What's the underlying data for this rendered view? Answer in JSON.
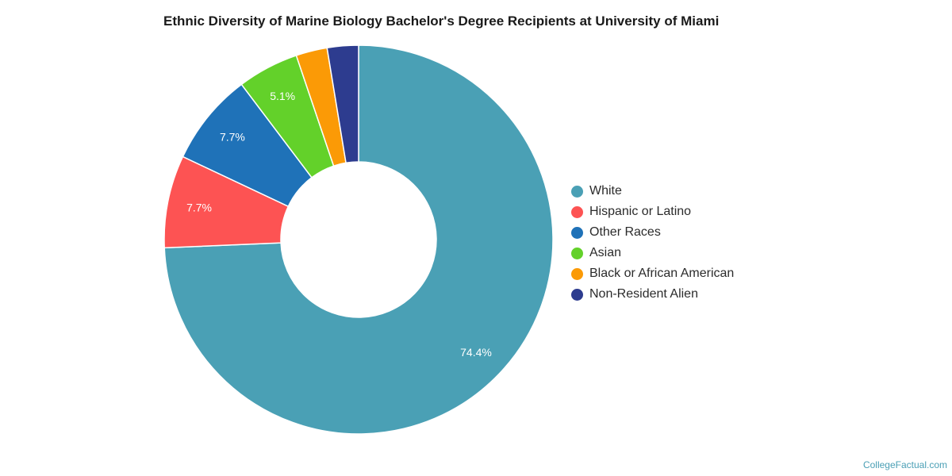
{
  "chart_data": {
    "type": "pie",
    "title": "Ethnic Diversity of Marine Biology Bachelor's Degree Recipients at University of Miami",
    "donut": true,
    "legend_position": "right",
    "slices": [
      {
        "label": "White",
        "value": 74.4,
        "color": "#4aa0b5",
        "data_label": "74.4%"
      },
      {
        "label": "Hispanic or Latino",
        "value": 7.7,
        "color": "#fd5353",
        "data_label": "7.7%"
      },
      {
        "label": "Other Races",
        "value": 7.7,
        "color": "#1f72b8",
        "data_label": "7.7%"
      },
      {
        "label": "Asian",
        "value": 5.1,
        "color": "#63d12a",
        "data_label": "5.1%"
      },
      {
        "label": "Black or African American",
        "value": 2.6,
        "color": "#fb9a06",
        "data_label": ""
      },
      {
        "label": "Non-Resident Alien",
        "value": 2.6,
        "color": "#2d3c8f",
        "data_label": ""
      }
    ]
  },
  "footer": {
    "source": "CollegeFactual.com"
  }
}
